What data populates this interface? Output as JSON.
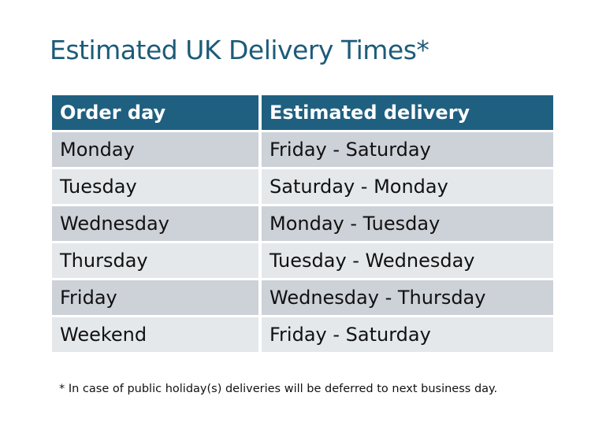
{
  "title": "Estimated UK Delivery Times*",
  "table": {
    "headers": [
      "Order day",
      "Estimated delivery"
    ],
    "rows": [
      [
        "Monday",
        "Friday - Saturday"
      ],
      [
        "Tuesday",
        "Saturday - Monday"
      ],
      [
        "Wednesday",
        "Monday - Tuesday"
      ],
      [
        "Thursday",
        "Tuesday - Wednesday"
      ],
      [
        "Friday",
        "Wednesday - Thursday"
      ],
      [
        "Weekend",
        "Friday - Saturday"
      ]
    ]
  },
  "footnote": "* In case of public holiday(s) deliveries will be deferred to next business day.",
  "colors": {
    "header": "#1f6081",
    "title": "#1d5b79",
    "row_dark": "#cdd1d8",
    "row_light": "#e5e8eb"
  }
}
